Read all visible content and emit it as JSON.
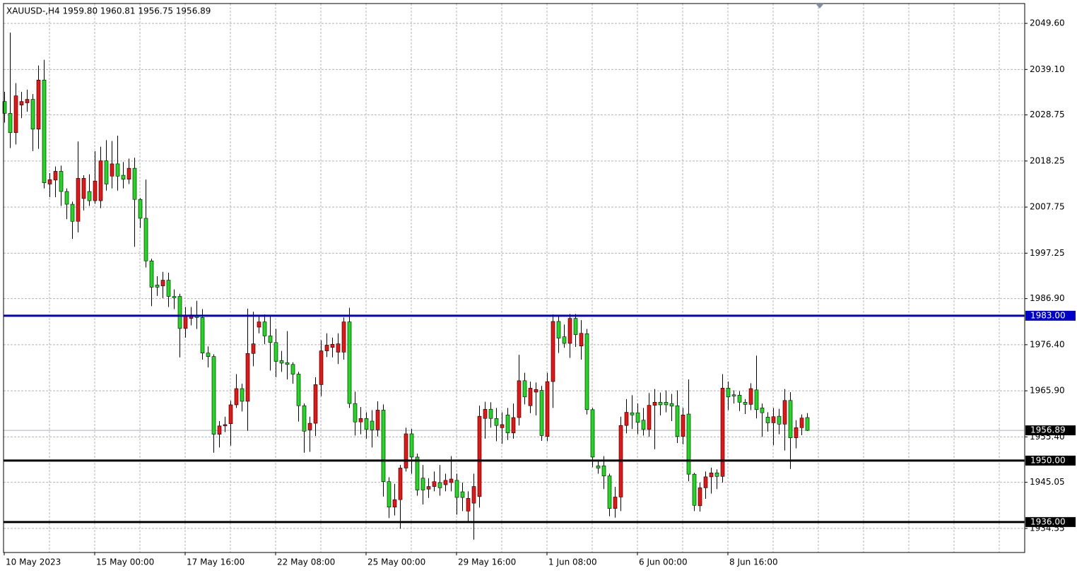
{
  "chart_data": {
    "type": "candlestick",
    "title": "XAUUSD-,H4  1959.80 1960.81 1956.75 1956.89",
    "up_color": "#e01818",
    "down_color": "#28d428",
    "grid": true,
    "ylim": [
      1929.06,
      2054.12
    ],
    "yticks": [
      {
        "value": 2049.6,
        "label": "2049.60"
      },
      {
        "value": 2039.1,
        "label": "2039.10"
      },
      2028.75,
      2018.25,
      2007.75,
      1997.25,
      {
        "value": 1986.9,
        "label": "1986.90"
      },
      {
        "value": 1976.4,
        "label": "1976.40"
      },
      {
        "value": 1965.9,
        "label": "1965.90"
      },
      {
        "value": 1955.4,
        "label": "1955.40"
      },
      1945.05,
      1934.55
    ],
    "hlines": [
      {
        "value": 1983,
        "label": "1983.00",
        "color": "#0000c8"
      },
      {
        "value": 1950,
        "label": "1950.00",
        "color": "#000000"
      },
      {
        "value": 1936,
        "label": "1936.00",
        "color": "#000000"
      }
    ],
    "last_price": {
      "value": 1956.89,
      "label": "1956.89",
      "color": "#a8b0bc"
    },
    "categories": [
      "10 May 2023",
      null,
      null,
      null,
      null,
      null,
      null,
      null,
      null,
      null,
      null,
      null,
      null,
      null,
      null,
      null,
      "15 May 00:00",
      null,
      null,
      null,
      null,
      null,
      null,
      null,
      null,
      null,
      null,
      null,
      null,
      null,
      null,
      null,
      "17 May 16:00",
      null,
      null,
      null,
      null,
      null,
      null,
      null,
      null,
      null,
      null,
      null,
      null,
      null,
      null,
      null,
      "22 May 08:00",
      null,
      null,
      null,
      null,
      null,
      null,
      null,
      null,
      null,
      null,
      null,
      null,
      null,
      null,
      null,
      "25 May 00:00",
      null,
      null,
      null,
      null,
      null,
      null,
      null,
      null,
      null,
      null,
      null,
      null,
      null,
      null,
      null,
      "29 May 16:00",
      null,
      null,
      null,
      null,
      null,
      null,
      null,
      null,
      null,
      null,
      null,
      null,
      null,
      null,
      null,
      "1 Jun 08:00",
      null,
      null,
      null,
      null,
      null,
      null,
      null,
      null,
      null,
      null,
      null,
      null,
      null,
      null,
      null,
      "6 Jun 00:00",
      null,
      null,
      null,
      null,
      null,
      null,
      null,
      null,
      null,
      null,
      null,
      null,
      null,
      null,
      null,
      "8 Jun 16:00",
      null,
      null,
      null,
      null,
      null,
      null,
      null,
      null,
      null,
      null,
      null,
      null,
      null,
      null
    ],
    "ohlc": [
      [
        2031.8,
        2034,
        2027,
        2029.1
      ],
      [
        2029.1,
        2047.5,
        2021.2,
        2024.7
      ],
      [
        2024.7,
        2036,
        2022,
        2033.1
      ],
      [
        2031,
        2034,
        2028,
        2031.8
      ],
      [
        2031.5,
        2034.5,
        2029.5,
        2032.3
      ],
      [
        2032.3,
        2033.5,
        2020.5,
        2025.5
      ],
      [
        2025.5,
        2040,
        2021,
        2036.7
      ],
      [
        2036.7,
        2041.3,
        2012,
        2013.3
      ],
      [
        2013,
        2015.5,
        2010,
        2014
      ],
      [
        2013.9,
        2017,
        2010,
        2015.9
      ],
      [
        2015.9,
        2017.2,
        2008,
        2011.3
      ],
      [
        2011.3,
        2012,
        2005,
        2008.4
      ],
      [
        2008.4,
        2009,
        2000.5,
        2004.5
      ],
      [
        2004.5,
        2022.7,
        2002,
        2014.3
      ],
      [
        2009.7,
        2015,
        2007,
        2014.3
      ],
      [
        2011.3,
        2015.2,
        2008,
        2009.2
      ],
      [
        2009.2,
        2020.5,
        2008.5,
        2013.7
      ],
      [
        2009.2,
        2021.5,
        2007.5,
        2018.3
      ],
      [
        2018.3,
        2023,
        2011.5,
        2013
      ],
      [
        2014.8,
        2022.8,
        2012,
        2017.6
      ],
      [
        2017.6,
        2024,
        2011.5,
        2014.8
      ],
      [
        2015,
        2018,
        2012,
        2014.1
      ],
      [
        2014.1,
        2018.8,
        2013,
        2016.6
      ],
      [
        2016.6,
        2019,
        1998.7,
        2009.5
      ],
      [
        2009.5,
        2009.8,
        2003,
        2005.2
      ],
      [
        2005.2,
        2014,
        1994,
        1995.5
      ],
      [
        1995.5,
        1996,
        1985.2,
        1989.5
      ],
      [
        1990,
        1992,
        1987.5,
        1989.5
      ],
      [
        1989.8,
        1993,
        1987,
        1991.1
      ],
      [
        1991.1,
        1992.8,
        1985,
        1987.4
      ],
      [
        1987.4,
        1989,
        1984.5,
        1987.1
      ],
      [
        1987.4,
        1988,
        1973.5,
        1980.1
      ],
      [
        1980.1,
        1985,
        1978,
        1983
      ],
      [
        1982.4,
        1985,
        1980.8,
        1983.2
      ],
      [
        1983,
        1986.4,
        1980,
        1982.6
      ],
      [
        1982.6,
        1984.5,
        1973,
        1974.5
      ],
      [
        1974.5,
        1976,
        1971.2,
        1973.7
      ],
      [
        1973.7,
        1974.2,
        1951.8,
        1956
      ],
      [
        1956,
        1959,
        1953,
        1957.9
      ],
      [
        1957.9,
        1960,
        1956.5,
        1958.2
      ],
      [
        1958.4,
        1963.6,
        1953.4,
        1962.7
      ],
      [
        1962.7,
        1969.7,
        1962,
        1966.4
      ],
      [
        1966.4,
        1967.5,
        1961.2,
        1963.5
      ],
      [
        1963.5,
        1984.6,
        1956.8,
        1974.4
      ],
      [
        1974.4,
        1983.9,
        1971.5,
        1976.6
      ],
      [
        1980.4,
        1983,
        1979,
        1981.6
      ],
      [
        1981.6,
        1983.3,
        1976.5,
        1978.4
      ],
      [
        1978.4,
        1983.2,
        1970.5,
        1976.9
      ],
      [
        1976.9,
        1980,
        1969,
        1972.6
      ],
      [
        1972.8,
        1975,
        1970.2,
        1972.2
      ],
      [
        1972.3,
        1979.5,
        1968.5,
        1971.9
      ],
      [
        1971.9,
        1972.4,
        1967.5,
        1969.7
      ],
      [
        1969.7,
        1970.2,
        1958.9,
        1962.5
      ],
      [
        1962.5,
        1963,
        1951.8,
        1956.7
      ],
      [
        1957,
        1960,
        1952,
        1958.5
      ],
      [
        1958.5,
        1969,
        1955.6,
        1967.3
      ],
      [
        1967.3,
        1977.4,
        1964.7,
        1975
      ],
      [
        1975,
        1979,
        1973.6,
        1976.3
      ],
      [
        1975.8,
        1978,
        1973.5,
        1976.5
      ],
      [
        1974.7,
        1979,
        1972,
        1976.6
      ],
      [
        1974.7,
        1982.6,
        1973,
        1981.6
      ],
      [
        1981.6,
        1984.8,
        1962,
        1963
      ],
      [
        1963,
        1965.7,
        1955.7,
        1958.8
      ],
      [
        1958.8,
        1962.2,
        1956,
        1959.6
      ],
      [
        1959.6,
        1961,
        1955,
        1957.1
      ],
      [
        1959,
        1961.5,
        1953,
        1957
      ],
      [
        1957,
        1963.5,
        1955.5,
        1961.5
      ],
      [
        1961.5,
        1962.8,
        1941.8,
        1945.2
      ],
      [
        1945.2,
        1946.2,
        1936.9,
        1939.4
      ],
      [
        1939.4,
        1944.7,
        1937.5,
        1941.1
      ],
      [
        1941.1,
        1949,
        1934.5,
        1948.3
      ],
      [
        1948.3,
        1957.5,
        1947.5,
        1956.1
      ],
      [
        1956.1,
        1957.2,
        1947,
        1950.8
      ],
      [
        1950.8,
        1951.6,
        1942,
        1943.3
      ],
      [
        1946,
        1949,
        1940,
        1943.3
      ],
      [
        1943.5,
        1946,
        1941.5,
        1944.1
      ],
      [
        1944.1,
        1947.5,
        1943,
        1945.2
      ],
      [
        1945,
        1949,
        1942,
        1943.8
      ],
      [
        1944.5,
        1947,
        1943,
        1945.5
      ],
      [
        1945,
        1951,
        1943,
        1945.8
      ],
      [
        1945.5,
        1947,
        1937.7,
        1941.6
      ],
      [
        1942.9,
        1945,
        1938.5,
        1941.6
      ],
      [
        1938.5,
        1943,
        1936,
        1941.4
      ],
      [
        1940.3,
        1947,
        1932,
        1944.1
      ],
      [
        1941.8,
        1962.5,
        1939.3,
        1960.1
      ],
      [
        1959.6,
        1963.4,
        1955,
        1961.7
      ],
      [
        1961.7,
        1963.3,
        1957.5,
        1959.6
      ],
      [
        1959.6,
        1962,
        1954.4,
        1958
      ],
      [
        1957.5,
        1961,
        1953.8,
        1958.2
      ],
      [
        1960.4,
        1962,
        1954.7,
        1956.3
      ],
      [
        1956.3,
        1963,
        1955,
        1959.8
      ],
      [
        1959.8,
        1974.1,
        1958,
        1968.2
      ],
      [
        1968.2,
        1970,
        1962.8,
        1964.5
      ],
      [
        1962.5,
        1968,
        1960.8,
        1966.5
      ],
      [
        1965.6,
        1967.8,
        1960.3,
        1966.2
      ],
      [
        1966,
        1967,
        1954.5,
        1955.7
      ],
      [
        1955.5,
        1970,
        1954.4,
        1968
      ],
      [
        1968,
        1983.3,
        1962,
        1981.7
      ],
      [
        1981.7,
        1982.8,
        1974.5,
        1977.9
      ],
      [
        1978.2,
        1981,
        1975.7,
        1976.7
      ],
      [
        1976.7,
        1983.4,
        1973.4,
        1982.4
      ],
      [
        1982.4,
        1983.4,
        1975.9,
        1978.7
      ],
      [
        1976.1,
        1982,
        1973,
        1979
      ],
      [
        1978.9,
        1980,
        1960.5,
        1961.6
      ],
      [
        1961.6,
        1962,
        1948.5,
        1950.8
      ],
      [
        1948.8,
        1950,
        1947,
        1948.3
      ],
      [
        1948.8,
        1951,
        1943.5,
        1946.5
      ],
      [
        1946.5,
        1947,
        1937.3,
        1939.1
      ],
      [
        1939.1,
        1944,
        1937,
        1941.7
      ],
      [
        1941.7,
        1960,
        1938.5,
        1958
      ],
      [
        1958,
        1964,
        1956.2,
        1961
      ],
      [
        1960.9,
        1964.9,
        1957.2,
        1960.4
      ],
      [
        1960.9,
        1963,
        1956,
        1958.7
      ],
      [
        1959.2,
        1962,
        1955.7,
        1957.1
      ],
      [
        1957.1,
        1965.4,
        1955.4,
        1962.6
      ],
      [
        1962.6,
        1966.3,
        1952.6,
        1963.3
      ],
      [
        1963.3,
        1965.5,
        1960.3,
        1962.7
      ],
      [
        1963.3,
        1966,
        1961,
        1962.7
      ],
      [
        1963,
        1965.2,
        1959,
        1962.4
      ],
      [
        1962.5,
        1966,
        1954,
        1955.5
      ],
      [
        1955.5,
        1962,
        1953.7,
        1960.4
      ],
      [
        1960.6,
        1968.5,
        1945.3,
        1946.9
      ],
      [
        1946.9,
        1947.2,
        1938.5,
        1939.8
      ],
      [
        1939.7,
        1945,
        1938.4,
        1943.8
      ],
      [
        1943.8,
        1947.5,
        1941.3,
        1946.3
      ],
      [
        1946.3,
        1948.4,
        1942.5,
        1947.2
      ],
      [
        1947.2,
        1948,
        1943.5,
        1946.4
      ],
      [
        1946.4,
        1969.7,
        1945,
        1966.5
      ],
      [
        1966.5,
        1968,
        1961.5,
        1964.5
      ],
      [
        1965,
        1966,
        1963,
        1964.7
      ],
      [
        1964.9,
        1965.8,
        1961.3,
        1963.3
      ],
      [
        1963.3,
        1964,
        1960.6,
        1962.8
      ],
      [
        1962.8,
        1967.6,
        1961.5,
        1966.4
      ],
      [
        1966.1,
        1973.9,
        1959.6,
        1961.6
      ],
      [
        1962,
        1963,
        1955.4,
        1960.9
      ],
      [
        1959.9,
        1961,
        1956.6,
        1958.6
      ],
      [
        1958.6,
        1962,
        1953.5,
        1960
      ],
      [
        1960.1,
        1961.8,
        1956,
        1958.3
      ],
      [
        1958.3,
        1966.3,
        1952.3,
        1963.7
      ],
      [
        1963.7,
        1965.6,
        1948.1,
        1955.2
      ],
      [
        1955.2,
        1959.2,
        1952.8,
        1957.5
      ],
      [
        1957.5,
        1960.5,
        1955.8,
        1959.7
      ],
      [
        1959.8,
        1960.81,
        1956.75,
        1956.89
      ]
    ]
  }
}
